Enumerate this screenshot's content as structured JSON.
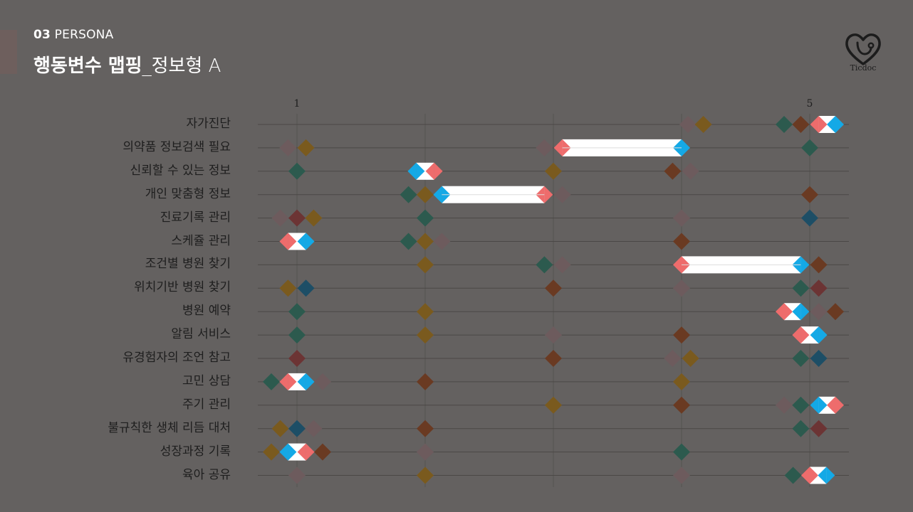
{
  "header": {
    "section_num": "03",
    "section_name": "PERSONA",
    "title_bold": "행동변수 맵핑",
    "title_light": "_정보형 A"
  },
  "logo": {
    "text": "Ticdoc",
    "icon": "heart-stethoscope-icon"
  },
  "colors": {
    "background": "#646160",
    "line": "#4b4846",
    "pink": "#ee6c6c",
    "blue": "#14a9e6",
    "teal": "#2c5a4e",
    "brown": "#6a3a22",
    "mauve": "#6d5b5d",
    "gold": "#7a5a1e",
    "red": "#6c3434",
    "navy": "#1d4e66"
  },
  "chart_data": {
    "type": "behavioral-variable-mapping",
    "scale_labels": [
      {
        "label": "1",
        "value": 1
      },
      {
        "label": "5",
        "value": 5
      }
    ],
    "scale_range": [
      0.75,
      5.3
    ],
    "rows": [
      {
        "label": "자가진단",
        "markers": [
          {
            "v": 4.05,
            "c": "mauve"
          },
          {
            "v": 4.17,
            "c": "gold"
          },
          {
            "v": 4.8,
            "c": "teal"
          },
          {
            "v": 4.93,
            "c": "brown"
          }
        ],
        "target": {
          "from": 5.07,
          "to": 5.2,
          "type": "pair"
        }
      },
      {
        "label": "의약품 정보검색 필요",
        "markers": [
          {
            "v": 0.93,
            "c": "mauve"
          },
          {
            "v": 1.07,
            "c": "gold"
          },
          {
            "v": 2.93,
            "c": "mauve"
          },
          {
            "v": 5.0,
            "c": "teal"
          }
        ],
        "target": {
          "from": 3.07,
          "to": 4.0,
          "type": "range"
        }
      },
      {
        "label": "신뢰할 수 있는 정보",
        "markers": [
          {
            "v": 1.0,
            "c": "teal"
          },
          {
            "v": 3.0,
            "c": "gold"
          },
          {
            "v": 3.93,
            "c": "brown"
          },
          {
            "v": 4.07,
            "c": "mauve"
          }
        ],
        "target": {
          "from": 1.93,
          "to": 2.07,
          "type": "pair-reverse"
        }
      },
      {
        "label": "개인 맞춤형 정보",
        "markers": [
          {
            "v": 1.87,
            "c": "teal"
          },
          {
            "v": 2.0,
            "c": "gold"
          },
          {
            "v": 3.07,
            "c": "mauve"
          },
          {
            "v": 5.0,
            "c": "brown"
          }
        ],
        "target": {
          "from": 2.13,
          "to": 2.93,
          "type": "range-reverse"
        }
      },
      {
        "label": "진료기록 관리",
        "markers": [
          {
            "v": 0.87,
            "c": "mauve"
          },
          {
            "v": 1.0,
            "c": "red"
          },
          {
            "v": 1.13,
            "c": "gold"
          },
          {
            "v": 2.0,
            "c": "teal"
          },
          {
            "v": 4.0,
            "c": "mauve"
          },
          {
            "v": 5.0,
            "c": "navy"
          }
        ],
        "target": null
      },
      {
        "label": "스케쥴 관리",
        "markers": [
          {
            "v": 1.87,
            "c": "teal"
          },
          {
            "v": 2.0,
            "c": "gold"
          },
          {
            "v": 2.13,
            "c": "mauve"
          },
          {
            "v": 4.0,
            "c": "brown"
          }
        ],
        "target": {
          "from": 0.93,
          "to": 1.07,
          "type": "pair"
        }
      },
      {
        "label": "조건별 병원 찾기",
        "markers": [
          {
            "v": 2.0,
            "c": "gold"
          },
          {
            "v": 2.93,
            "c": "teal"
          },
          {
            "v": 3.07,
            "c": "mauve"
          },
          {
            "v": 5.07,
            "c": "brown"
          }
        ],
        "target": {
          "from": 4.0,
          "to": 4.93,
          "type": "range"
        }
      },
      {
        "label": "위치기반 병원 찾기",
        "markers": [
          {
            "v": 0.93,
            "c": "gold"
          },
          {
            "v": 1.07,
            "c": "navy"
          },
          {
            "v": 3.0,
            "c": "brown"
          },
          {
            "v": 4.0,
            "c": "mauve"
          },
          {
            "v": 4.93,
            "c": "teal"
          },
          {
            "v": 5.07,
            "c": "red"
          }
        ],
        "target": null
      },
      {
        "label": "병원 예약",
        "markers": [
          {
            "v": 1.0,
            "c": "teal"
          },
          {
            "v": 2.0,
            "c": "gold"
          },
          {
            "v": 5.07,
            "c": "mauve"
          },
          {
            "v": 5.2,
            "c": "brown"
          }
        ],
        "target": {
          "from": 4.8,
          "to": 4.93,
          "type": "pair"
        }
      },
      {
        "label": "알림 서비스",
        "markers": [
          {
            "v": 1.0,
            "c": "teal"
          },
          {
            "v": 2.0,
            "c": "gold"
          },
          {
            "v": 3.0,
            "c": "mauve"
          },
          {
            "v": 4.0,
            "c": "brown"
          }
        ],
        "target": {
          "from": 4.93,
          "to": 5.07,
          "type": "pair"
        }
      },
      {
        "label": "유경험자의 조언 참고",
        "markers": [
          {
            "v": 1.0,
            "c": "red"
          },
          {
            "v": 3.0,
            "c": "brown"
          },
          {
            "v": 3.93,
            "c": "mauve"
          },
          {
            "v": 4.07,
            "c": "gold"
          },
          {
            "v": 4.93,
            "c": "teal"
          },
          {
            "v": 5.07,
            "c": "navy"
          }
        ],
        "target": null
      },
      {
        "label": "고민 상담",
        "markers": [
          {
            "v": 0.8,
            "c": "teal"
          },
          {
            "v": 1.2,
            "c": "mauve"
          },
          {
            "v": 2.0,
            "c": "brown"
          },
          {
            "v": 4.0,
            "c": "gold"
          }
        ],
        "target": {
          "from": 0.93,
          "to": 1.07,
          "type": "pair"
        }
      },
      {
        "label": "주기 관리",
        "markers": [
          {
            "v": 3.0,
            "c": "gold"
          },
          {
            "v": 4.0,
            "c": "brown"
          },
          {
            "v": 4.8,
            "c": "mauve"
          },
          {
            "v": 4.93,
            "c": "teal"
          }
        ],
        "target": {
          "from": 5.07,
          "to": 5.2,
          "type": "pair-reverse"
        }
      },
      {
        "label": "불규칙한 생체 리듬 대처",
        "markers": [
          {
            "v": 0.87,
            "c": "gold"
          },
          {
            "v": 1.0,
            "c": "navy"
          },
          {
            "v": 1.13,
            "c": "mauve"
          },
          {
            "v": 2.0,
            "c": "brown"
          },
          {
            "v": 4.93,
            "c": "teal"
          },
          {
            "v": 5.07,
            "c": "red"
          }
        ],
        "target": null
      },
      {
        "label": "성장과정 기록",
        "markers": [
          {
            "v": 0.8,
            "c": "gold"
          },
          {
            "v": 1.2,
            "c": "brown"
          },
          {
            "v": 2.0,
            "c": "mauve"
          },
          {
            "v": 4.0,
            "c": "teal"
          }
        ],
        "target": {
          "from": 0.93,
          "to": 1.07,
          "type": "pair-reverse"
        }
      },
      {
        "label": "육아 공유",
        "markers": [
          {
            "v": 1.0,
            "c": "mauve"
          },
          {
            "v": 2.0,
            "c": "gold"
          },
          {
            "v": 4.0,
            "c": "mauve"
          },
          {
            "v": 4.87,
            "c": "teal"
          }
        ],
        "target": {
          "from": 5.0,
          "to": 5.13,
          "type": "pair"
        }
      }
    ]
  }
}
